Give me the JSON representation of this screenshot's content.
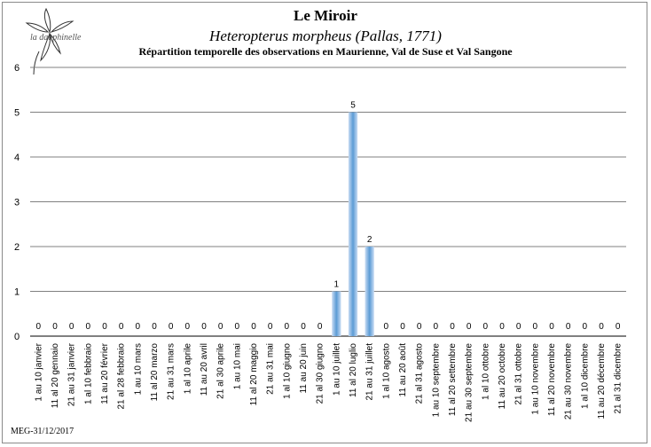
{
  "header": {
    "title": "Le Miroir",
    "subtitle": "Heteropterus morpheus (Pallas, 1771)",
    "description": "Répartition temporelle des observations en Maurienne, Val de Suse et Val Sangone",
    "logo_text": "la dauphinelle"
  },
  "footer": {
    "credit": "MEG-31/12/2017"
  },
  "colors": {
    "bar": "#5b9bd5",
    "grid": "#808080"
  },
  "chart_data": {
    "type": "bar",
    "title": "Le Miroir",
    "xlabel": "",
    "ylabel": "",
    "ylim": [
      0,
      6
    ],
    "yticks": [
      0,
      1,
      2,
      3,
      4,
      5,
      6
    ],
    "grid": true,
    "categories": [
      "1 au 10 janvier",
      "11 al 20 gennaio",
      "21 au 31 janvier",
      "1 al 10 febbraio",
      "11 au 20 février",
      "21 al 28 febbraio",
      "1 au 10 mars",
      "11 al 20 marzo",
      "21 au 31 mars",
      "1 al 10 aprile",
      "11 au 20 avril",
      "21 al 30 aprile",
      "1 au 10 mai",
      "11 al 20 maggio",
      "21 au 31 mai",
      "1 al 10 giugno",
      "11 au 20 juin",
      "21 al 30 giugno",
      "1 au 10 juillet",
      "11 al 20 luglio",
      "21 au 31 juillet",
      "1 al 10 agosto",
      "11 au 20 août",
      "21 al 31 agosto",
      "1 au 10 septembre",
      "11 al 20 settembre",
      "21 au 30 septembre",
      "1 al 10 ottobre",
      "11 au 20 octobre",
      "21 al 31 ottobre",
      "1 au 10 novembre",
      "11 al 20 novembre",
      "21 au 30 novembre",
      "1 al 10 dicembre",
      "11 au 20 décembre",
      "21 al 31 dicembre"
    ],
    "values": [
      0,
      0,
      0,
      0,
      0,
      0,
      0,
      0,
      0,
      0,
      0,
      0,
      0,
      0,
      0,
      0,
      0,
      0,
      1,
      5,
      2,
      0,
      0,
      0,
      0,
      0,
      0,
      0,
      0,
      0,
      0,
      0,
      0,
      0,
      0,
      0
    ]
  }
}
